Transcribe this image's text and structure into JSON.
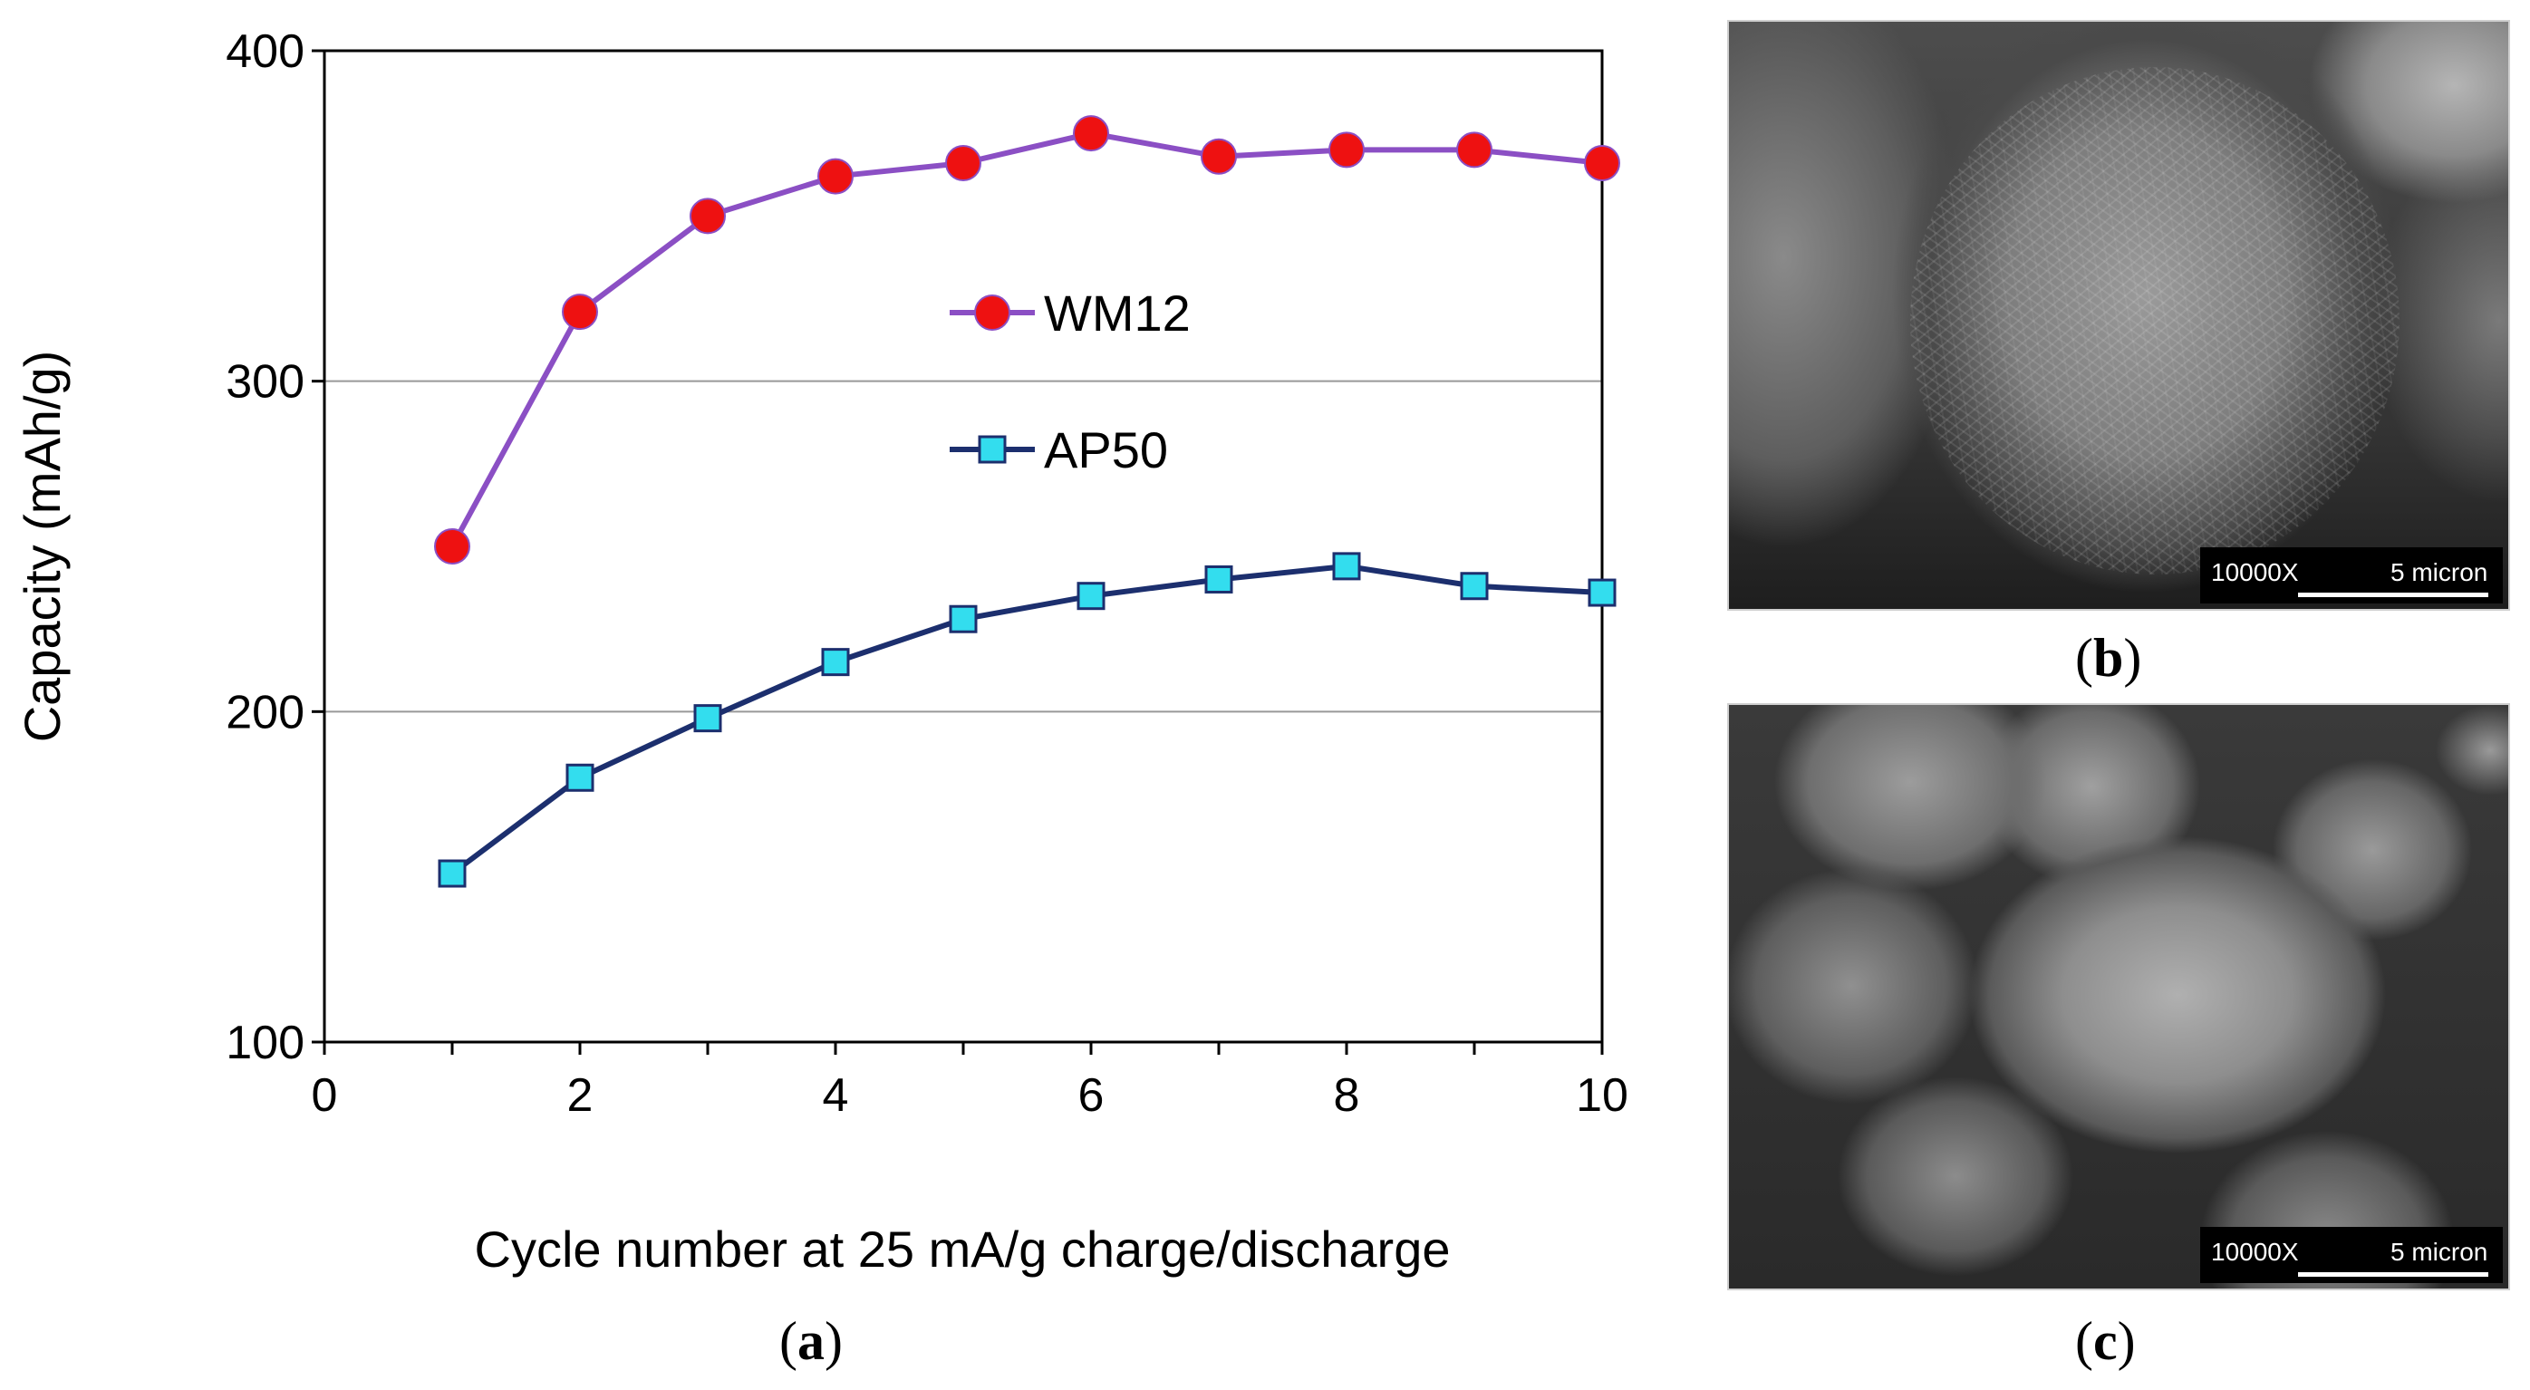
{
  "chart_data": {
    "type": "line",
    "xlabel": "Cycle number at 25 mA/g charge/discharge",
    "ylabel": "Capacity (mAh/g)",
    "xlim": [
      0,
      10
    ],
    "ylim": [
      100,
      400
    ],
    "xticks": [
      0,
      2,
      4,
      6,
      8,
      10
    ],
    "yticks": [
      100,
      200,
      300,
      400
    ],
    "grid": "horizontal",
    "legend": "inside, upper-middle",
    "x": [
      1,
      2,
      3,
      4,
      5,
      6,
      7,
      8,
      9,
      10
    ],
    "series": [
      {
        "name": "WM12",
        "marker": "circle",
        "line_color": "#8b4fc4",
        "marker_color": "#ee1111",
        "values": [
          250,
          321,
          350,
          362,
          366,
          375,
          368,
          370,
          370,
          366
        ]
      },
      {
        "name": "AP50",
        "marker": "square",
        "line_color": "#1c2f6e",
        "marker_color": "#33ddee",
        "values": [
          151,
          180,
          198,
          215,
          228,
          235,
          240,
          244,
          238,
          236
        ]
      }
    ]
  },
  "panels": {
    "a": {
      "prefix": "(",
      "letter": "a",
      "suffix": ")"
    },
    "b": {
      "prefix": "(",
      "letter": "b",
      "suffix": ")"
    },
    "c": {
      "prefix": "(",
      "letter": "c",
      "suffix": ")"
    }
  },
  "micrographs": {
    "b": {
      "magnification": "10000X",
      "scale": "5 micron"
    },
    "c": {
      "magnification": "10000X",
      "scale": "5 micron"
    }
  }
}
